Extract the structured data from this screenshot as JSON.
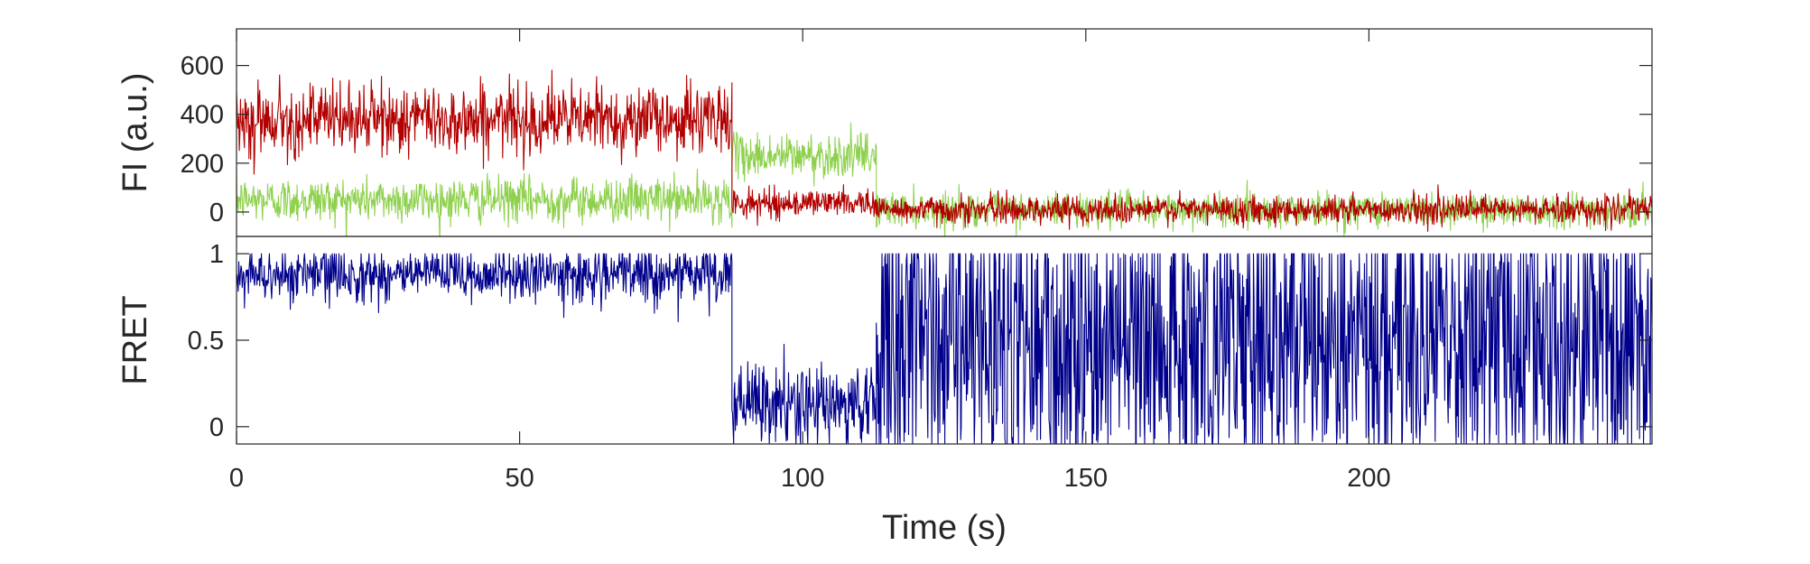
{
  "chart_data": [
    {
      "type": "line",
      "panel": "top",
      "title": "",
      "xlabel": "",
      "ylabel": "FI (a.u.)",
      "xlim": [
        0,
        250
      ],
      "ylim": [
        -100,
        750
      ],
      "yticks": [
        0,
        200,
        400,
        600
      ],
      "ytick_labels": [
        "0",
        "200",
        "400",
        "600"
      ],
      "grid": false,
      "legend": "none",
      "sampling_interval_s": 0.1,
      "series": [
        {
          "color": "#8fd14f",
          "segments": [
            {
              "x_start": 0,
              "x_end": 87.5,
              "mean": 50,
              "noise": 45
            },
            {
              "x_start": 87.5,
              "x_end": 113,
              "mean": 230,
              "noise": 45
            },
            {
              "x_start": 113,
              "x_end": 250,
              "mean": 10,
              "noise": 35
            }
          ]
        },
        {
          "color": "#b20000",
          "segments": [
            {
              "x_start": 0,
              "x_end": 87.5,
              "mean": 380,
              "noise": 70
            },
            {
              "x_start": 87.5,
              "x_end": 100,
              "mean": 35,
              "noise": 30
            },
            {
              "x_start": 100,
              "x_end": 113,
              "mean": 40,
              "noise": 25
            },
            {
              "x_start": 113,
              "x_end": 250,
              "mean": 10,
              "noise": 28
            }
          ]
        }
      ]
    },
    {
      "type": "line",
      "panel": "bottom",
      "title": "",
      "xlabel": "Time (s)",
      "ylabel": "FRET",
      "xlim": [
        0,
        250
      ],
      "ylim": [
        -0.1,
        1.1
      ],
      "xticks": [
        0,
        50,
        100,
        150,
        200
      ],
      "xtick_labels": [
        "0",
        "50",
        "100",
        "150",
        "200"
      ],
      "yticks": [
        0,
        0.5,
        1
      ],
      "ytick_labels": [
        "0",
        "0.5",
        "1"
      ],
      "grid": false,
      "legend": "none",
      "sampling_interval_s": 0.1,
      "series": [
        {
          "color": "#00008b",
          "segments": [
            {
              "x_start": 0,
              "x_end": 87.5,
              "mean": 0.88,
              "noise": 0.08
            },
            {
              "x_start": 87.5,
              "x_end": 113,
              "mean": 0.12,
              "noise": 0.12
            },
            {
              "x_start": 113,
              "x_end": 250,
              "mean": 0.5,
              "noise": 0.6
            }
          ]
        }
      ]
    }
  ]
}
